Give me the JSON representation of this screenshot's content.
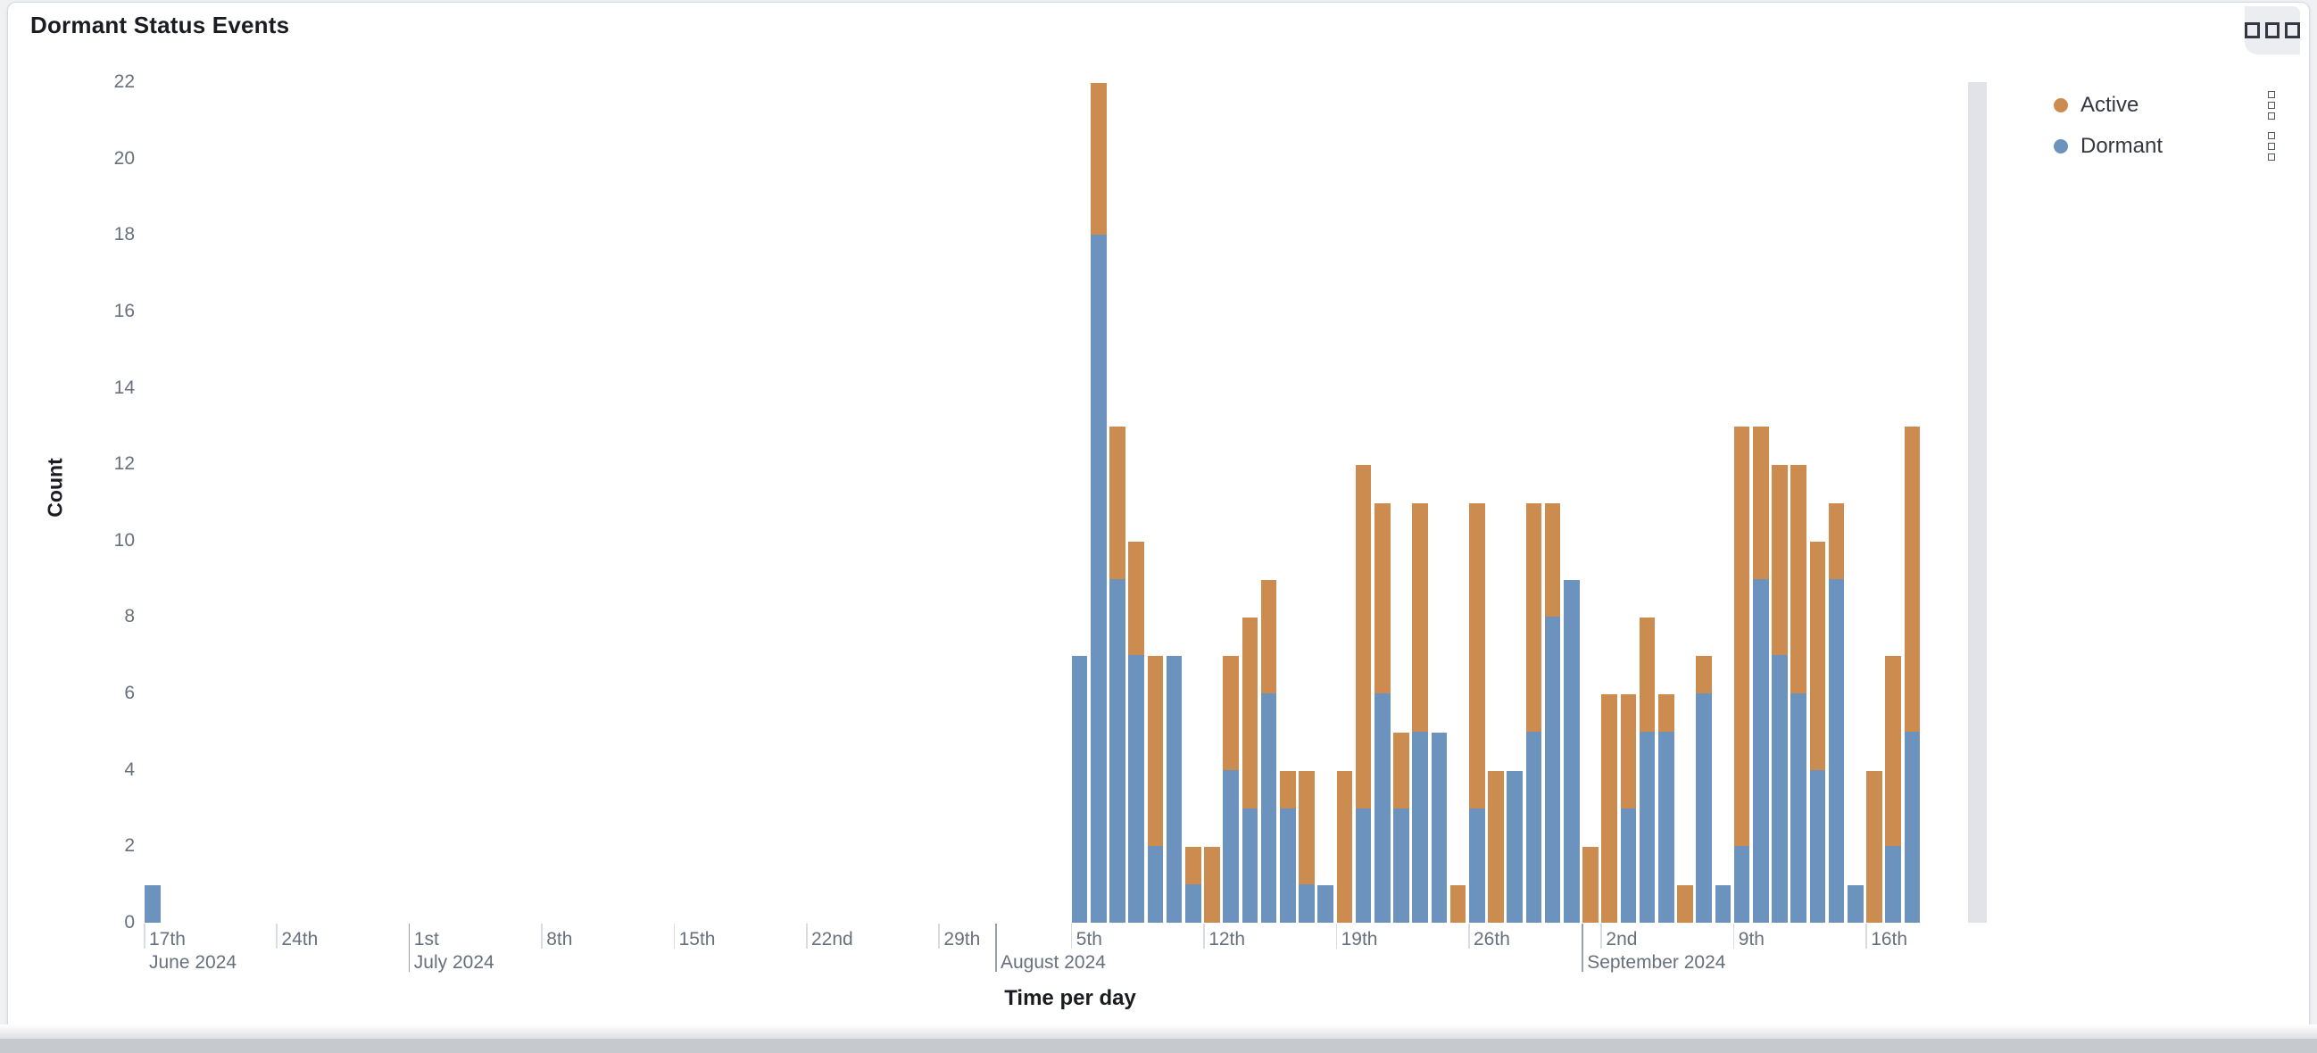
{
  "panel": {
    "title": "Dormant Status Events",
    "options_icon": "boxes-horizontal-icon"
  },
  "legend": {
    "position": "right",
    "items": [
      {
        "label": "Active",
        "color": "#CC8C50",
        "menu_icon": "boxes-vertical-icon"
      },
      {
        "label": "Dormant",
        "color": "#6C92BE",
        "menu_icon": "boxes-vertical-icon"
      }
    ]
  },
  "chart_data": {
    "type": "bar",
    "stacked": true,
    "title": "Dormant Status Events",
    "xlabel": "Time per day",
    "ylabel": "Count",
    "ylim": [
      0,
      22
    ],
    "yticks": [
      0,
      2,
      4,
      6,
      8,
      10,
      12,
      14,
      16,
      18,
      20,
      22
    ],
    "grid": false,
    "legend_position": "right",
    "colors": {
      "Active": "#CC8C50",
      "Dormant": "#6C92BE"
    },
    "x_axis_start": "2024-06-15",
    "x_axis_end": "2024-09-24",
    "week_ticks": [
      {
        "date": "2024-06-17",
        "label": "17th"
      },
      {
        "date": "2024-06-24",
        "label": "24th"
      },
      {
        "date": "2024-07-01",
        "label": "1st"
      },
      {
        "date": "2024-07-08",
        "label": "8th"
      },
      {
        "date": "2024-07-15",
        "label": "15th"
      },
      {
        "date": "2024-07-22",
        "label": "22nd"
      },
      {
        "date": "2024-07-29",
        "label": "29th"
      },
      {
        "date": "2024-08-05",
        "label": "5th"
      },
      {
        "date": "2024-08-12",
        "label": "12th"
      },
      {
        "date": "2024-08-19",
        "label": "19th"
      },
      {
        "date": "2024-08-26",
        "label": "26th"
      },
      {
        "date": "2024-09-02",
        "label": "2nd"
      },
      {
        "date": "2024-09-09",
        "label": "9th"
      },
      {
        "date": "2024-09-16",
        "label": "16th"
      }
    ],
    "month_labels": [
      {
        "date": "2024-06-17",
        "label": "June 2024",
        "separator": false
      },
      {
        "date": "2024-07-01",
        "label": "July 2024",
        "separator": true
      },
      {
        "date": "2024-08-01",
        "label": "August 2024",
        "separator": true
      },
      {
        "date": "2024-09-01",
        "label": "September 2024",
        "separator": true
      }
    ],
    "points": [
      {
        "date": "2024-06-17",
        "Dormant": 1,
        "Active": 0
      },
      {
        "date": "2024-08-05",
        "Dormant": 7,
        "Active": 0
      },
      {
        "date": "2024-08-06",
        "Dormant": 18,
        "Active": 4
      },
      {
        "date": "2024-08-07",
        "Dormant": 9,
        "Active": 4
      },
      {
        "date": "2024-08-08",
        "Dormant": 7,
        "Active": 3
      },
      {
        "date": "2024-08-09",
        "Dormant": 2,
        "Active": 5
      },
      {
        "date": "2024-08-10",
        "Dormant": 7,
        "Active": 0
      },
      {
        "date": "2024-08-11",
        "Dormant": 1,
        "Active": 1
      },
      {
        "date": "2024-08-12",
        "Dormant": 0,
        "Active": 2
      },
      {
        "date": "2024-08-13",
        "Dormant": 4,
        "Active": 3
      },
      {
        "date": "2024-08-14",
        "Dormant": 3,
        "Active": 5
      },
      {
        "date": "2024-08-15",
        "Dormant": 6,
        "Active": 3
      },
      {
        "date": "2024-08-16",
        "Dormant": 3,
        "Active": 1
      },
      {
        "date": "2024-08-17",
        "Dormant": 1,
        "Active": 3
      },
      {
        "date": "2024-08-18",
        "Dormant": 1,
        "Active": 0
      },
      {
        "date": "2024-08-19",
        "Dormant": 0,
        "Active": 4
      },
      {
        "date": "2024-08-20",
        "Dormant": 3,
        "Active": 9
      },
      {
        "date": "2024-08-21",
        "Dormant": 6,
        "Active": 5
      },
      {
        "date": "2024-08-22",
        "Dormant": 3,
        "Active": 2
      },
      {
        "date": "2024-08-23",
        "Dormant": 5,
        "Active": 6
      },
      {
        "date": "2024-08-24",
        "Dormant": 5,
        "Active": 0
      },
      {
        "date": "2024-08-25",
        "Dormant": 0,
        "Active": 1
      },
      {
        "date": "2024-08-26",
        "Dormant": 3,
        "Active": 8
      },
      {
        "date": "2024-08-27",
        "Dormant": 0,
        "Active": 4
      },
      {
        "date": "2024-08-28",
        "Dormant": 4,
        "Active": 0
      },
      {
        "date": "2024-08-29",
        "Dormant": 5,
        "Active": 6
      },
      {
        "date": "2024-08-30",
        "Dormant": 8,
        "Active": 3
      },
      {
        "date": "2024-08-31",
        "Dormant": 9,
        "Active": 0
      },
      {
        "date": "2024-09-01",
        "Dormant": 0,
        "Active": 2
      },
      {
        "date": "2024-09-02",
        "Dormant": 0,
        "Active": 6
      },
      {
        "date": "2024-09-03",
        "Dormant": 3,
        "Active": 3
      },
      {
        "date": "2024-09-04",
        "Dormant": 5,
        "Active": 3
      },
      {
        "date": "2024-09-05",
        "Dormant": 5,
        "Active": 1
      },
      {
        "date": "2024-09-06",
        "Dormant": 0,
        "Active": 1
      },
      {
        "date": "2024-09-07",
        "Dormant": 6,
        "Active": 1
      },
      {
        "date": "2024-09-08",
        "Dormant": 1,
        "Active": 0
      },
      {
        "date": "2024-09-09",
        "Dormant": 2,
        "Active": 11
      },
      {
        "date": "2024-09-10",
        "Dormant": 9,
        "Active": 4
      },
      {
        "date": "2024-09-11",
        "Dormant": 7,
        "Active": 5
      },
      {
        "date": "2024-09-12",
        "Dormant": 6,
        "Active": 6
      },
      {
        "date": "2024-09-13",
        "Dormant": 4,
        "Active": 6
      },
      {
        "date": "2024-09-14",
        "Dormant": 9,
        "Active": 2
      },
      {
        "date": "2024-09-15",
        "Dormant": 1,
        "Active": 0
      },
      {
        "date": "2024-09-16",
        "Dormant": 0,
        "Active": 4
      },
      {
        "date": "2024-09-17",
        "Dormant": 2,
        "Active": 5
      },
      {
        "date": "2024-09-18",
        "Dormant": 5,
        "Active": 8
      }
    ],
    "incomplete_bucket": {
      "color": "#E1E3E8",
      "note": "light gray partial current-bucket band at right edge of plot"
    }
  }
}
